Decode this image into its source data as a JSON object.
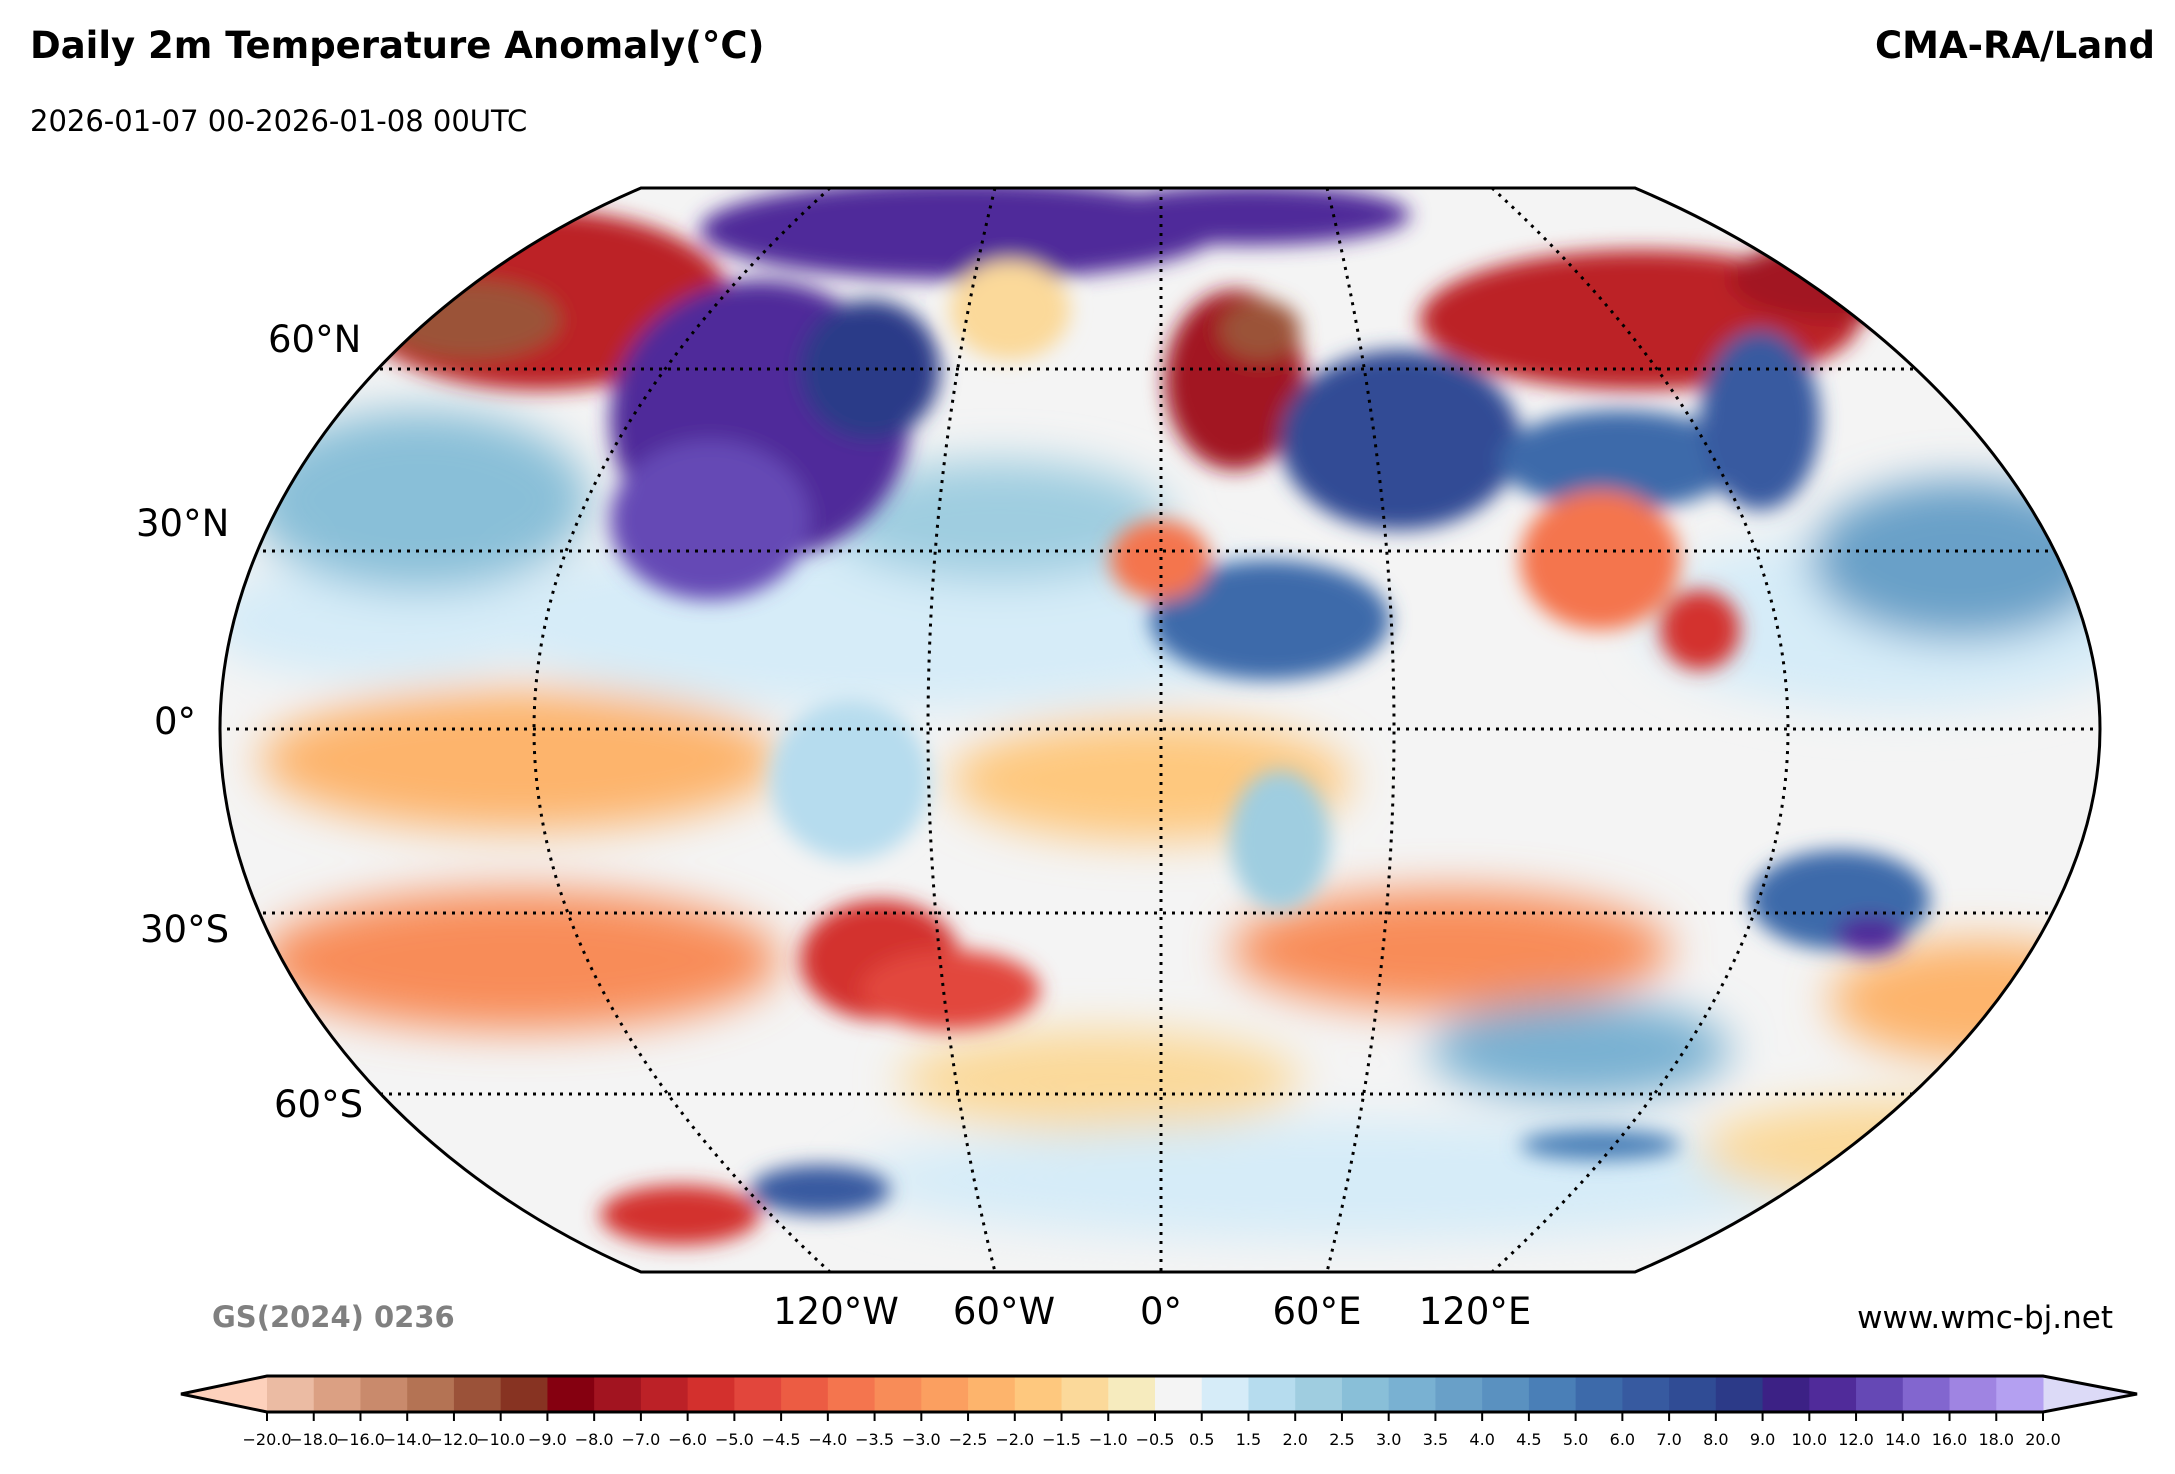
{
  "header": {
    "title": "Daily 2m Temperature Anomaly(°C)",
    "source": "CMA-RA/Land",
    "subtitle": "2026-01-07 00-2026-01-08 00UTC"
  },
  "footer": {
    "map_approval": "GS(2024) 0236",
    "website": "www.wmc-bj.net"
  },
  "chart_data": {
    "type": "heatmap",
    "title": "Daily 2m Temperature Anomaly(°C)",
    "projection": "Robinson (global)",
    "lat_labels": [
      "60°N",
      "30°N",
      "0°",
      "30°S",
      "60°S"
    ],
    "lon_labels": [
      "120°W",
      "60°W",
      "0°",
      "60°E",
      "120°E"
    ],
    "grid": true,
    "colorbar": {
      "extend": "both",
      "ticks": [
        "−20.0",
        "−18.0",
        "−16.0",
        "−14.0",
        "−12.0",
        "−10.0",
        "−9.0",
        "−8.0",
        "−7.0",
        "−6.0",
        "−5.0",
        "−4.5",
        "−4.0",
        "−3.5",
        "−3.0",
        "−2.5",
        "−2.0",
        "−1.5",
        "−1.0",
        "−0.5",
        "0.5",
        "1.5",
        "2.0",
        "2.5",
        "3.0",
        "3.5",
        "4.0",
        "4.5",
        "5.0",
        "6.0",
        "7.0",
        "8.0",
        "9.0",
        "10.0",
        "12.0",
        "14.0",
        "16.0",
        "18.0",
        "20.0"
      ],
      "colors": [
        "#ebbba3",
        "#dba083",
        "#c98a6c",
        "#b47354",
        "#9b5239",
        "#873322",
        "#850010",
        "#a21420",
        "#bc2127",
        "#d3302d",
        "#e2463c",
        "#ec5c43",
        "#f4754e",
        "#f88c58",
        "#fb9f60",
        "#fdb46c",
        "#fec87e",
        "#fbd99a",
        "#f6ebbe",
        "#f4f4f4",
        "#d6ecf8",
        "#b6dcee",
        "#9fcde0",
        "#89bfd8",
        "#79b1d2",
        "#69a0c8",
        "#5a91c0",
        "#4a7fb7",
        "#3d6aaa",
        "#375aa0",
        "#304c95",
        "#2c3a88",
        "#3c2185",
        "#502b9a",
        "#6548b5",
        "#8266cf",
        "#9f84e2",
        "#b4a0f1"
      ],
      "under_color": "#fdd1bc",
      "over_color": "#dcdaf7"
    }
  }
}
